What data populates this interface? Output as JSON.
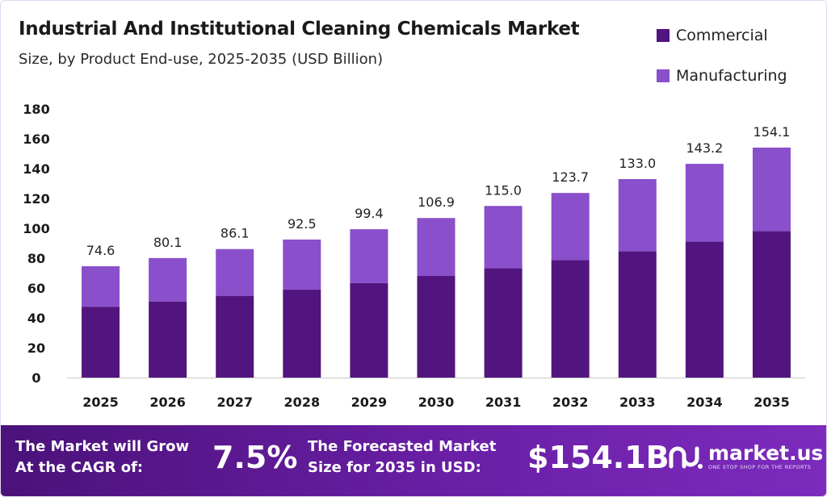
{
  "colors": {
    "commercial": "#521580",
    "manufacturing": "#8a4fcb",
    "axis": "#c9c9c9"
  },
  "chart_data": {
    "type": "bar",
    "stacked": true,
    "title": "Industrial And Institutional Cleaning Chemicals Market",
    "subtitle": "Size, by Product End-use, 2025-2035 (USD Billion)",
    "categories": [
      "2025",
      "2026",
      "2027",
      "2028",
      "2029",
      "2030",
      "2031",
      "2032",
      "2033",
      "2034",
      "2035"
    ],
    "series": [
      {
        "name": "Commercial",
        "values": [
          47.5,
          51.0,
          54.8,
          58.9,
          63.3,
          68.1,
          73.3,
          78.8,
          84.7,
          91.2,
          98.2
        ]
      },
      {
        "name": "Manufacturing",
        "values": [
          27.1,
          29.1,
          31.3,
          33.6,
          36.1,
          38.8,
          41.7,
          44.9,
          48.3,
          52.0,
          55.9
        ]
      }
    ],
    "totals": [
      "74.6",
      "80.1",
      "86.1",
      "92.5",
      "99.4",
      "106.9",
      "115.0",
      "123.7",
      "133.0",
      "143.2",
      "154.1"
    ],
    "y_ticks": [
      "0",
      "20",
      "40",
      "60",
      "80",
      "100",
      "120",
      "140",
      "160",
      "180"
    ],
    "ylim": [
      0,
      180
    ],
    "grid": false,
    "legend_position": "top-right"
  },
  "footer": {
    "cagr_line1": "The Market will Grow",
    "cagr_line2": "At the CAGR of:",
    "cagr_value": "7.5%",
    "forecast_line1": "The Forecasted Market",
    "forecast_line2": "Size for 2035 in USD:",
    "forecast_value": "$154.1B",
    "logo_name": "market.us",
    "logo_tagline": "ONE STOP SHOP FOR THE REPORTS",
    "logo_icon": "market-us-logo-icon"
  }
}
